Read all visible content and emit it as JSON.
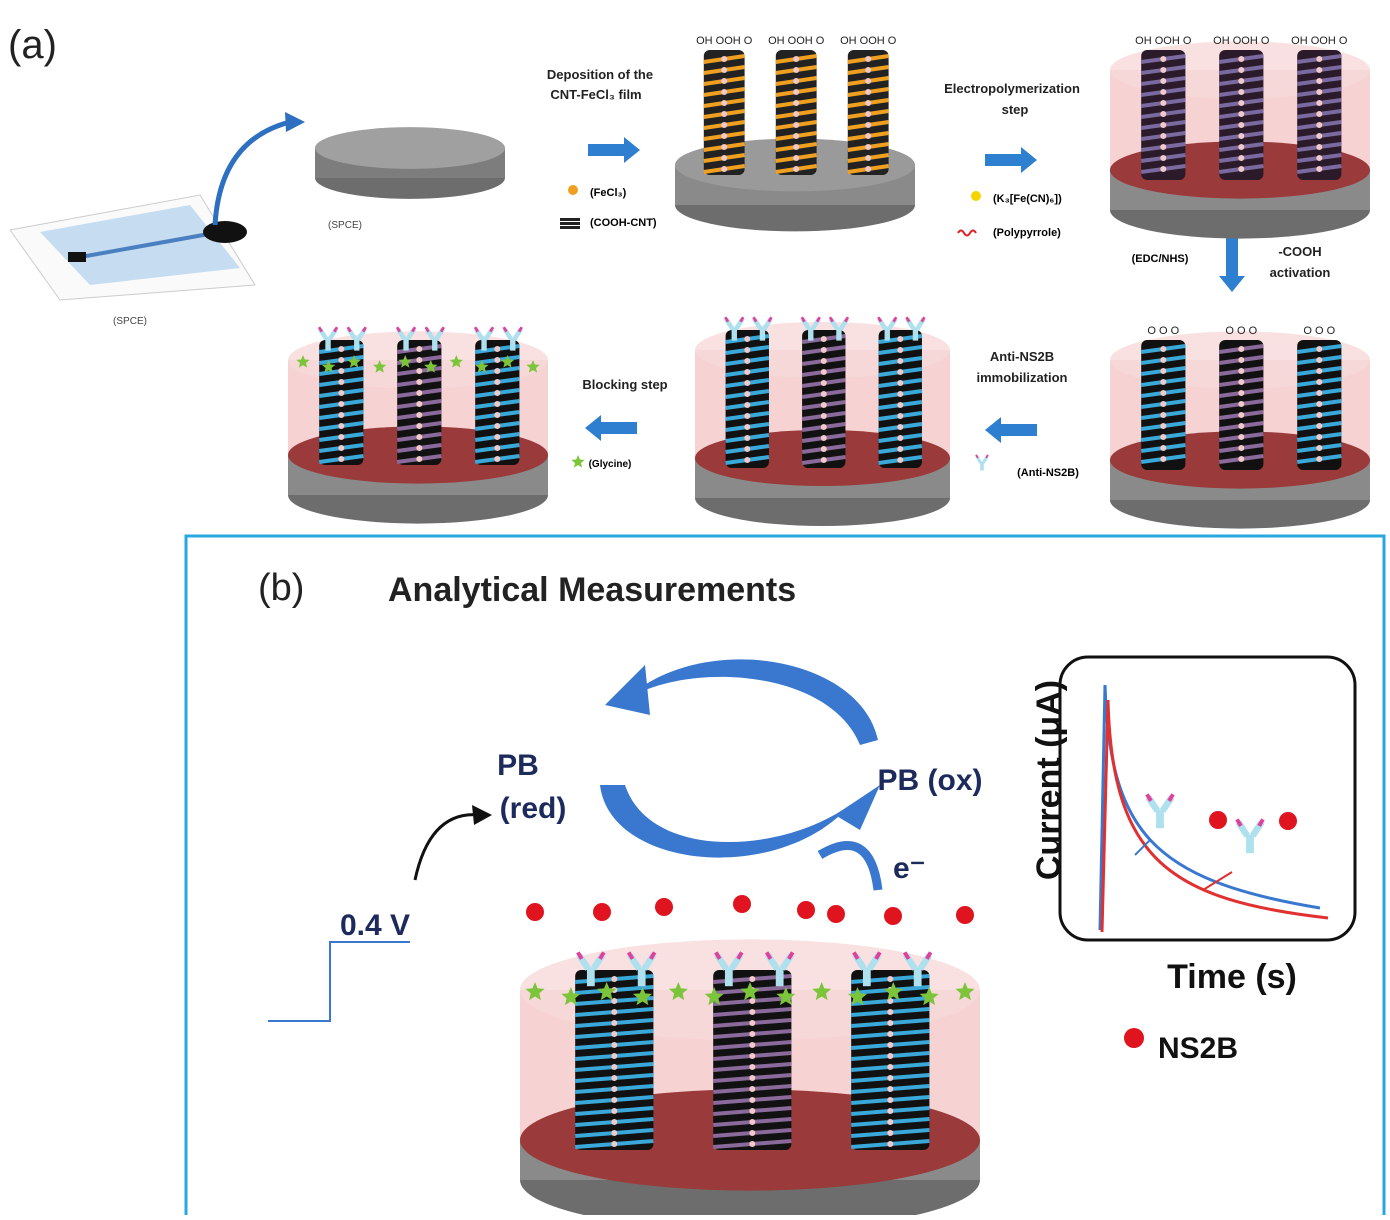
{
  "panel_a": {
    "label": "(a)",
    "spce_strip": "(SPCE)",
    "spce_disk": "(SPCE)",
    "step1": {
      "line1": "Deposition of the",
      "line2": "CNT-FeCl₃ film"
    },
    "legend1": [
      "(FeCl₃)",
      "(COOH-CNT)"
    ],
    "functional_groups": "OH OOH O",
    "step2": {
      "line1": "Electropolymerization",
      "line2": "step"
    },
    "legend2": [
      "(K₃[Fe(CN)₆])",
      "(Polypyrrole)"
    ],
    "step3": {
      "reagent": "(EDC/NHS)",
      "line1": "-COOH",
      "line2": "activation"
    },
    "activated_groups": "O O O",
    "step4": {
      "line1": "Anti-NS2B",
      "line2": "immobilization",
      "legend": "(Anti-NS2B)"
    },
    "step5": {
      "line1": "Blocking step",
      "legend": "(Glycine)"
    }
  },
  "panel_b": {
    "label": "(b)",
    "title": "Analytical Measurements",
    "pb_red": {
      "line1": "PB",
      "line2": "(red)"
    },
    "pb_ox": "PB (ox)",
    "electron": "e⁻",
    "potential": "0.4 V",
    "y_axis": "Current (μA)",
    "x_axis": "Time (s)",
    "legend": "NS2B"
  }
}
